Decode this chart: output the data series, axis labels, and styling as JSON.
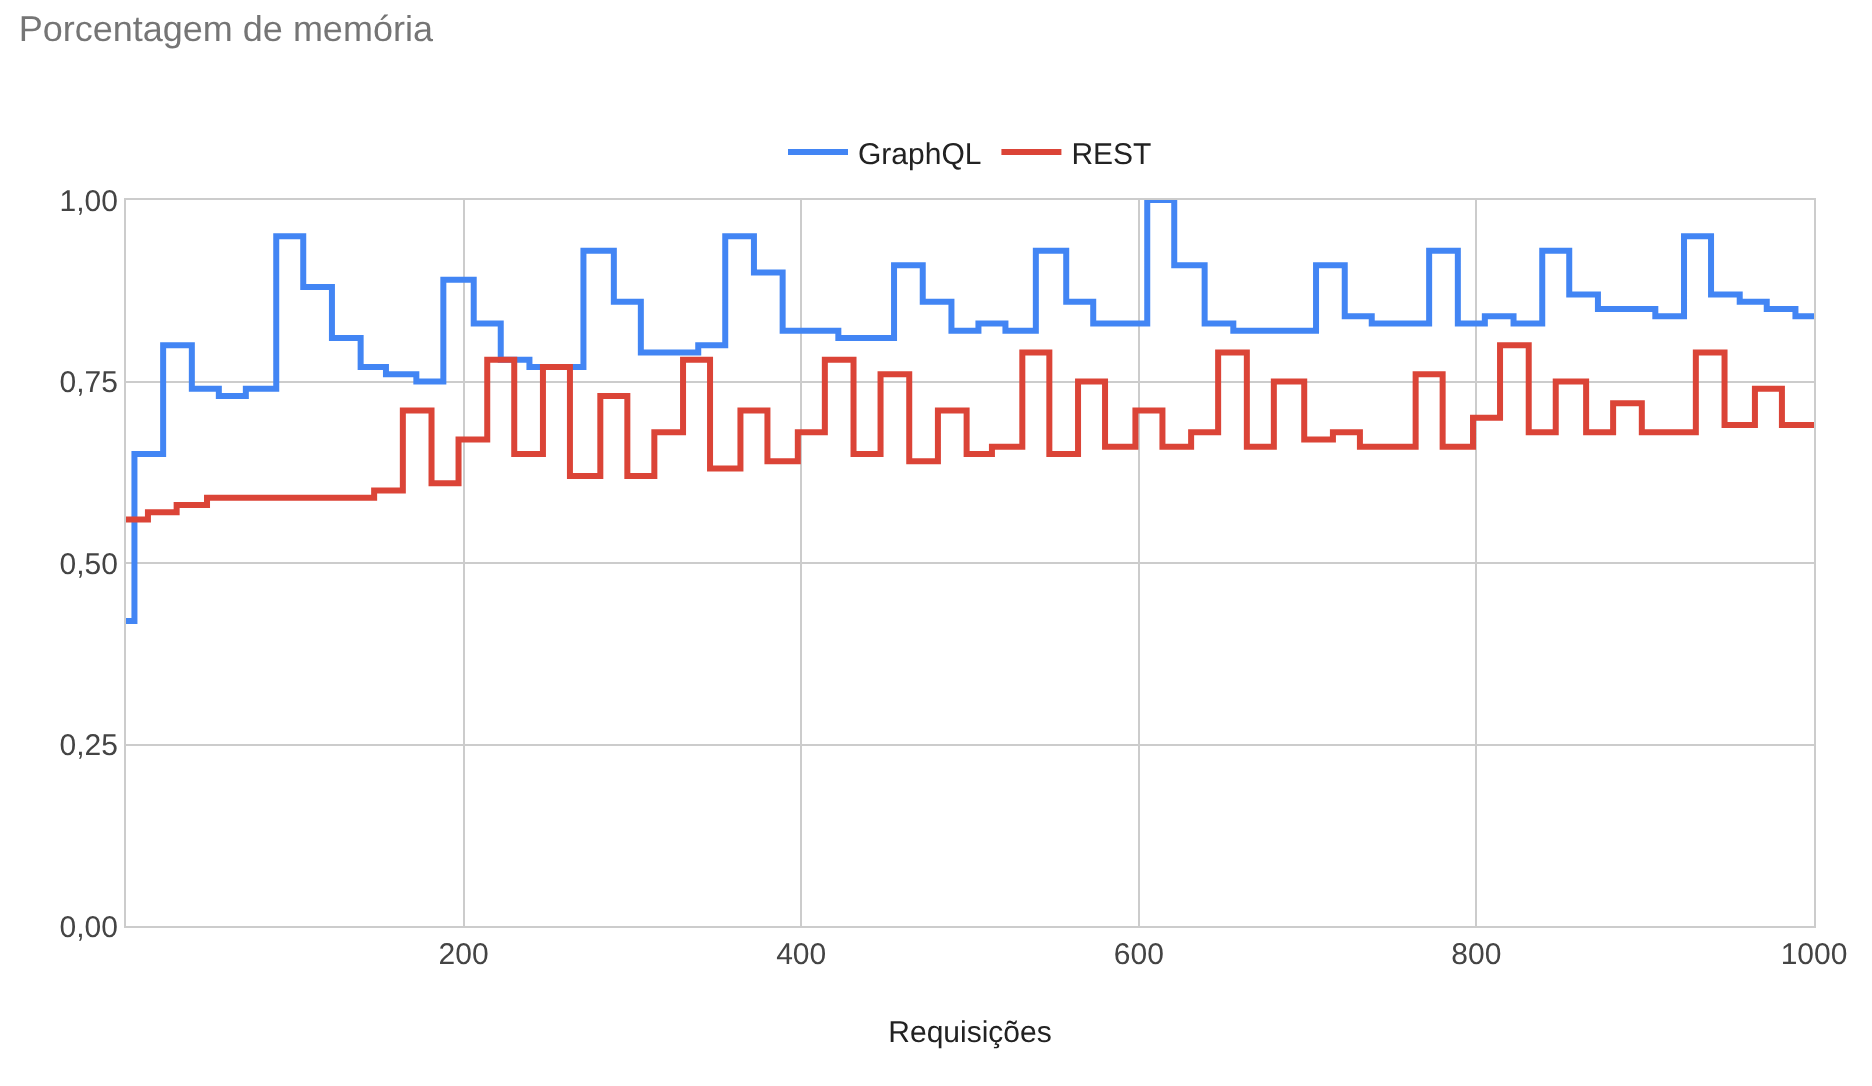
{
  "chart_data": {
    "type": "step",
    "title": "Porcentagem de memória",
    "xlabel": "Requisições",
    "xlim": [
      0,
      1000
    ],
    "xticks": [
      200,
      400,
      600,
      800,
      1000
    ],
    "ylim": [
      0,
      1
    ],
    "yticks": [
      {
        "value": 0,
        "label": "0,00"
      },
      {
        "value": 0.25,
        "label": "0,25"
      },
      {
        "value": 0.5,
        "label": "0,50"
      },
      {
        "value": 0.75,
        "label": "0,75"
      },
      {
        "value": 1,
        "label": "1,00"
      }
    ],
    "grid": true,
    "legend": "top",
    "line_style": "solid",
    "series": [
      {
        "name": "GraphQL",
        "color": "#4285f4",
        "x": [
          0,
          5,
          22,
          39,
          55,
          71,
          89,
          105,
          122,
          139,
          154,
          172,
          188,
          206,
          222,
          239,
          271,
          289,
          305,
          339,
          355,
          372,
          389,
          422,
          455,
          472,
          489,
          505,
          521,
          539,
          557,
          573,
          605,
          621,
          639,
          656,
          705,
          722,
          738,
          772,
          789,
          805,
          822,
          839,
          855,
          872,
          906,
          923,
          939,
          956,
          972,
          989,
          1000
        ],
        "values": [
          0.42,
          0.65,
          0.8,
          0.74,
          0.73,
          0.74,
          0.95,
          0.88,
          0.81,
          0.77,
          0.76,
          0.75,
          0.89,
          0.83,
          0.78,
          0.77,
          0.93,
          0.86,
          0.79,
          0.8,
          0.95,
          0.9,
          0.82,
          0.81,
          0.91,
          0.86,
          0.82,
          0.83,
          0.82,
          0.93,
          0.86,
          0.83,
          1.0,
          0.91,
          0.83,
          0.82,
          0.91,
          0.84,
          0.83,
          0.93,
          0.83,
          0.84,
          0.83,
          0.93,
          0.87,
          0.85,
          0.84,
          0.95,
          0.87,
          0.86,
          0.85,
          0.84,
          0.84
        ]
      },
      {
        "name": "REST",
        "color": "#db4437",
        "x": [
          0,
          13,
          30,
          48,
          147,
          164,
          181,
          197,
          214,
          230,
          247,
          263,
          281,
          297,
          313,
          330,
          346,
          364,
          380,
          398,
          414,
          431,
          447,
          464,
          481,
          498,
          513,
          531,
          547,
          564,
          580,
          598,
          614,
          631,
          647,
          664,
          680,
          698,
          715,
          731,
          764,
          780,
          798,
          814,
          831,
          847,
          865,
          881,
          898,
          930,
          947,
          965,
          981,
          1000
        ],
        "values": [
          0.56,
          0.57,
          0.58,
          0.59,
          0.6,
          0.71,
          0.61,
          0.67,
          0.78,
          0.65,
          0.77,
          0.62,
          0.73,
          0.62,
          0.68,
          0.78,
          0.63,
          0.71,
          0.64,
          0.68,
          0.78,
          0.65,
          0.76,
          0.64,
          0.71,
          0.65,
          0.66,
          0.79,
          0.65,
          0.75,
          0.66,
          0.71,
          0.66,
          0.68,
          0.79,
          0.66,
          0.75,
          0.67,
          0.68,
          0.66,
          0.76,
          0.66,
          0.7,
          0.8,
          0.68,
          0.75,
          0.68,
          0.72,
          0.68,
          0.79,
          0.69,
          0.74,
          0.69,
          0.69
        ]
      }
    ]
  }
}
